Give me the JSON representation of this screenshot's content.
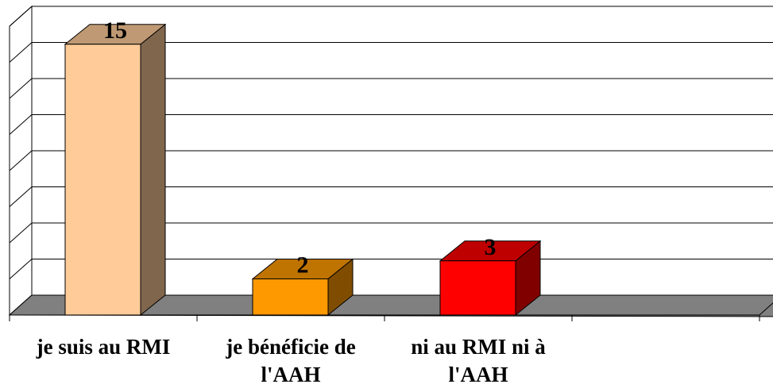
{
  "chart_data": {
    "type": "bar3d",
    "categories": [
      "je suis au RMI",
      "je bénéficie de l'AAH",
      "ni au RMI ni à l'AAH",
      null
    ],
    "values": [
      15,
      2,
      3,
      null
    ],
    "colors": [
      "#FFCC99",
      "#FF9900",
      "#FF0000",
      null
    ],
    "ylim": [
      0,
      16
    ],
    "yticks": [
      0,
      2,
      4,
      6,
      8,
      10,
      12,
      14,
      16
    ],
    "grid": true
  }
}
